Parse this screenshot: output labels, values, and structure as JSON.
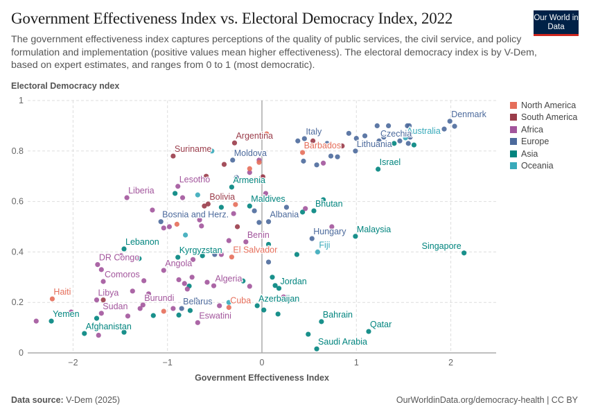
{
  "header": {
    "title": "Government Effectiveness Index vs. Electoral Democracy Index, 2022",
    "subtitle": "The government effectiveness index captures perceptions of the quality of public services, the civil service, and policy formulation and implementation (positive values mean higher effectiveness). The electoral democracy index is by V-Dem, based on expert estimates, and ranges from 0 to 1 (most democratic).",
    "logo": "Our World in Data"
  },
  "footer": {
    "source_label": "Data source:",
    "source": "V-Dem (2025)",
    "url": "OurWorldinData.org/democracy-health | CC BY"
  },
  "chart_data": {
    "type": "scatter",
    "title": "Government Effectiveness Index vs. Electoral Democracy Index, 2022",
    "xlabel": "Government Effectiveness Index",
    "ylabel": "Electoral Democracy ndex",
    "xlim": [
      -2.48,
      2.48
    ],
    "ylim": [
      0,
      1
    ],
    "xticks": [
      -2,
      -1,
      0,
      1,
      2
    ],
    "yticks": [
      0,
      0.2,
      0.4,
      0.6,
      0.8,
      1
    ],
    "ytick_labels": [
      "0",
      "0.2",
      "0.4",
      "0.6",
      "0.8",
      "1"
    ],
    "grid": true,
    "legend_position": "right",
    "legend": [
      {
        "name": "North America",
        "color": "#e56e5a"
      },
      {
        "name": "South America",
        "color": "#9a3c4a"
      },
      {
        "name": "Africa",
        "color": "#a2559c"
      },
      {
        "name": "Europe",
        "color": "#4c6a9c"
      },
      {
        "name": "Asia",
        "color": "#00847e"
      },
      {
        "name": "Oceania",
        "color": "#38aaba"
      }
    ],
    "points": [
      {
        "label": "Denmark",
        "region": "Europe",
        "x": 1.99,
        "y": 0.918
      },
      {
        "label": "Australia",
        "region": "Oceania",
        "x": 1.52,
        "y": 0.852
      },
      {
        "label": "Czechia",
        "region": "Europe",
        "x": 1.24,
        "y": 0.84
      },
      {
        "label": "Lithuania",
        "region": "Europe",
        "x": 0.99,
        "y": 0.8
      },
      {
        "label": "Italy",
        "region": "Europe",
        "x": 0.45,
        "y": 0.849
      },
      {
        "label": "Barbados",
        "region": "North America",
        "x": 0.43,
        "y": 0.794
      },
      {
        "label": "Israel",
        "region": "Asia",
        "x": 1.23,
        "y": 0.728
      },
      {
        "label": "Argentina",
        "region": "South America",
        "x": -0.29,
        "y": 0.832
      },
      {
        "label": "Suriname",
        "region": "South America",
        "x": -0.94,
        "y": 0.78
      },
      {
        "label": "Moldova",
        "region": "Europe",
        "x": -0.31,
        "y": 0.764
      },
      {
        "label": "Lesotho",
        "region": "Africa",
        "x": -0.89,
        "y": 0.66
      },
      {
        "label": "Liberia",
        "region": "Africa",
        "x": -1.43,
        "y": 0.615
      },
      {
        "label": "Armenia",
        "region": "Asia",
        "x": -0.32,
        "y": 0.657
      },
      {
        "label": "Bolivia",
        "region": "South America",
        "x": -0.57,
        "y": 0.59
      },
      {
        "label": "Maldives",
        "region": "Asia",
        "x": -0.13,
        "y": 0.582
      },
      {
        "label": "Bhutan",
        "region": "Asia",
        "x": 0.55,
        "y": 0.563
      },
      {
        "label": "Albania",
        "region": "Europe",
        "x": 0.07,
        "y": 0.52
      },
      {
        "label": "Bosnia and Herz.",
        "region": "Europe",
        "x": -1.07,
        "y": 0.52
      },
      {
        "label": "Hungary",
        "region": "Europe",
        "x": 0.53,
        "y": 0.453
      },
      {
        "label": "Malaysia",
        "region": "Asia",
        "x": 0.99,
        "y": 0.462
      },
      {
        "label": "Singapore",
        "region": "Asia",
        "x": 2.14,
        "y": 0.396
      },
      {
        "label": "Fiji",
        "region": "Oceania",
        "x": 0.59,
        "y": 0.4
      },
      {
        "label": "Benin",
        "region": "Africa",
        "x": -0.17,
        "y": 0.44
      },
      {
        "label": "El Salvador",
        "region": "North America",
        "x": -0.32,
        "y": 0.38
      },
      {
        "label": "Lebanon",
        "region": "Asia",
        "x": -1.46,
        "y": 0.412
      },
      {
        "label": "Kyrgyzstan",
        "region": "Asia",
        "x": -0.89,
        "y": 0.379
      },
      {
        "label": "DR Congo",
        "region": "Africa",
        "x": -1.74,
        "y": 0.35
      },
      {
        "label": "Angola",
        "region": "Africa",
        "x": -1.04,
        "y": 0.327
      },
      {
        "label": "Comoros",
        "region": "Africa",
        "x": -1.68,
        "y": 0.283
      },
      {
        "label": "Algeria",
        "region": "Africa",
        "x": -0.51,
        "y": 0.266
      },
      {
        "label": "Jordan",
        "region": "Asia",
        "x": 0.18,
        "y": 0.256
      },
      {
        "label": "Haiti",
        "region": "North America",
        "x": -2.22,
        "y": 0.214
      },
      {
        "label": "Libya",
        "region": "Africa",
        "x": -1.75,
        "y": 0.21
      },
      {
        "label": "Burundi",
        "region": "Africa",
        "x": -1.26,
        "y": 0.19
      },
      {
        "label": "Sudan",
        "region": "Africa",
        "x": -1.7,
        "y": 0.157
      },
      {
        "label": "Belarus",
        "region": "Europe",
        "x": -0.85,
        "y": 0.176
      },
      {
        "label": "Cuba",
        "region": "North America",
        "x": -0.35,
        "y": 0.18
      },
      {
        "label": "Azerbaijan",
        "region": "Asia",
        "x": -0.05,
        "y": 0.187
      },
      {
        "label": "Eswatini",
        "region": "Africa",
        "x": -0.68,
        "y": 0.12
      },
      {
        "label": "Yemen",
        "region": "Asia",
        "x": -2.23,
        "y": 0.126
      },
      {
        "label": "Afghanistan",
        "region": "Asia",
        "x": -1.88,
        "y": 0.077
      },
      {
        "label": "Bahrain",
        "region": "Asia",
        "x": 0.63,
        "y": 0.124
      },
      {
        "label": "Qatar",
        "region": "Asia",
        "x": 1.13,
        "y": 0.085
      },
      {
        "label": "Saudi Arabia",
        "region": "Asia",
        "x": 0.58,
        "y": 0.016
      },
      {
        "label": "",
        "region": "Europe",
        "x": 2.04,
        "y": 0.898
      },
      {
        "label": "",
        "region": "Europe",
        "x": 0.38,
        "y": 0.84
      },
      {
        "label": "",
        "region": "Europe",
        "x": 0.69,
        "y": 0.83
      },
      {
        "label": "",
        "region": "Europe",
        "x": 0.92,
        "y": 0.87
      },
      {
        "label": "",
        "region": "Europe",
        "x": 1.0,
        "y": 0.85
      },
      {
        "label": "",
        "region": "Europe",
        "x": 1.09,
        "y": 0.86
      },
      {
        "label": "",
        "region": "Europe",
        "x": 1.22,
        "y": 0.9
      },
      {
        "label": "",
        "region": "Europe",
        "x": 1.29,
        "y": 0.855
      },
      {
        "label": "",
        "region": "Europe",
        "x": 1.34,
        "y": 0.9
      },
      {
        "label": "",
        "region": "Europe",
        "x": 1.46,
        "y": 0.84
      },
      {
        "label": "",
        "region": "Europe",
        "x": 1.54,
        "y": 0.9
      },
      {
        "label": "",
        "region": "Europe",
        "x": 1.56,
        "y": 0.9
      },
      {
        "label": "",
        "region": "Europe",
        "x": 1.57,
        "y": 0.855
      },
      {
        "label": "",
        "region": "Europe",
        "x": 1.55,
        "y": 0.83
      },
      {
        "label": "",
        "region": "Europe",
        "x": 1.93,
        "y": 0.887
      },
      {
        "label": "",
        "region": "Europe",
        "x": 0.44,
        "y": 0.76
      },
      {
        "label": "",
        "region": "Europe",
        "x": 0.58,
        "y": 0.745
      },
      {
        "label": "",
        "region": "Europe",
        "x": 0.73,
        "y": 0.78
      },
      {
        "label": "",
        "region": "Europe",
        "x": 0.8,
        "y": 0.777
      },
      {
        "label": "",
        "region": "Europe",
        "x": 0.26,
        "y": 0.577
      },
      {
        "label": "",
        "region": "Europe",
        "x": -0.03,
        "y": 0.517
      },
      {
        "label": "",
        "region": "Europe",
        "x": -0.27,
        "y": 0.695
      },
      {
        "label": "",
        "region": "Europe",
        "x": -0.08,
        "y": 0.563
      },
      {
        "label": "",
        "region": "Europe",
        "x": 0.07,
        "y": 0.36
      },
      {
        "label": "",
        "region": "Europe",
        "x": -0.7,
        "y": 0.21
      },
      {
        "label": "",
        "region": "Europe",
        "x": -0.5,
        "y": 0.39
      },
      {
        "label": "",
        "region": "Asia",
        "x": 1.4,
        "y": 0.83
      },
      {
        "label": "",
        "region": "Asia",
        "x": 1.61,
        "y": 0.824
      },
      {
        "label": "",
        "region": "Asia",
        "x": 0.65,
        "y": 0.607
      },
      {
        "label": "",
        "region": "Asia",
        "x": 0.43,
        "y": 0.558
      },
      {
        "label": "",
        "region": "Asia",
        "x": -0.92,
        "y": 0.632
      },
      {
        "label": "",
        "region": "Asia",
        "x": -0.43,
        "y": 0.577
      },
      {
        "label": "",
        "region": "Asia",
        "x": 0.07,
        "y": 0.43
      },
      {
        "label": "",
        "region": "Asia",
        "x": 0.37,
        "y": 0.39
      },
      {
        "label": "",
        "region": "Asia",
        "x": -0.63,
        "y": 0.385
      },
      {
        "label": "",
        "region": "Asia",
        "x": -0.77,
        "y": 0.265
      },
      {
        "label": "",
        "region": "Asia",
        "x": -0.2,
        "y": 0.285
      },
      {
        "label": "",
        "region": "Asia",
        "x": 0.11,
        "y": 0.3
      },
      {
        "label": "",
        "region": "Asia",
        "x": 0.14,
        "y": 0.267
      },
      {
        "label": "",
        "region": "Asia",
        "x": 0.02,
        "y": 0.17
      },
      {
        "label": "",
        "region": "Asia",
        "x": 0.17,
        "y": 0.154
      },
      {
        "label": "",
        "region": "Asia",
        "x": -1.15,
        "y": 0.148
      },
      {
        "label": "",
        "region": "Asia",
        "x": -0.88,
        "y": 0.15
      },
      {
        "label": "",
        "region": "Asia",
        "x": -0.76,
        "y": 0.168
      },
      {
        "label": "",
        "region": "Asia",
        "x": -1.3,
        "y": 0.374
      },
      {
        "label": "",
        "region": "Asia",
        "x": -1.75,
        "y": 0.137
      },
      {
        "label": "",
        "region": "Asia",
        "x": -1.46,
        "y": 0.082
      },
      {
        "label": "",
        "region": "Asia",
        "x": 0.49,
        "y": 0.074
      },
      {
        "label": "",
        "region": "Oceania",
        "x": -0.53,
        "y": 0.8
      },
      {
        "label": "",
        "region": "Oceania",
        "x": -0.81,
        "y": 0.467
      },
      {
        "label": "",
        "region": "Oceania",
        "x": -0.68,
        "y": 0.626
      },
      {
        "label": "",
        "region": "Oceania",
        "x": -0.35,
        "y": 0.2
      },
      {
        "label": "",
        "region": "Africa",
        "x": 0.65,
        "y": 0.752
      },
      {
        "label": "",
        "region": "Africa",
        "x": 0.46,
        "y": 0.572
      },
      {
        "label": "",
        "region": "Africa",
        "x": 0.74,
        "y": 0.5
      },
      {
        "label": "",
        "region": "Africa",
        "x": -0.03,
        "y": 0.764
      },
      {
        "label": "",
        "region": "Africa",
        "x": -0.13,
        "y": 0.715
      },
      {
        "label": "",
        "region": "Africa",
        "x": 0.0,
        "y": 0.695
      },
      {
        "label": "",
        "region": "Africa",
        "x": 0.04,
        "y": 0.632
      },
      {
        "label": "",
        "region": "Africa",
        "x": -0.3,
        "y": 0.552
      },
      {
        "label": "",
        "region": "Africa",
        "x": -0.66,
        "y": 0.527
      },
      {
        "label": "",
        "region": "Africa",
        "x": -0.64,
        "y": 0.503
      },
      {
        "label": "",
        "region": "Africa",
        "x": -1.16,
        "y": 0.566
      },
      {
        "label": "",
        "region": "Africa",
        "x": -1.04,
        "y": 0.495
      },
      {
        "label": "",
        "region": "Africa",
        "x": -0.98,
        "y": 0.5
      },
      {
        "label": "",
        "region": "Africa",
        "x": -0.84,
        "y": 0.615
      },
      {
        "label": "",
        "region": "Africa",
        "x": -0.35,
        "y": 0.445
      },
      {
        "label": "",
        "region": "Africa",
        "x": -0.73,
        "y": 0.37
      },
      {
        "label": "",
        "region": "Africa",
        "x": -0.43,
        "y": 0.39
      },
      {
        "label": "",
        "region": "Africa",
        "x": -0.88,
        "y": 0.29
      },
      {
        "label": "",
        "region": "Africa",
        "x": -0.82,
        "y": 0.275
      },
      {
        "label": "",
        "region": "Africa",
        "x": -0.79,
        "y": 0.253
      },
      {
        "label": "",
        "region": "Africa",
        "x": -0.74,
        "y": 0.3
      },
      {
        "label": "",
        "region": "Africa",
        "x": -0.58,
        "y": 0.28
      },
      {
        "label": "",
        "region": "Africa",
        "x": -0.13,
        "y": 0.264
      },
      {
        "label": "",
        "region": "Africa",
        "x": -1.25,
        "y": 0.286
      },
      {
        "label": "",
        "region": "Africa",
        "x": -1.37,
        "y": 0.245
      },
      {
        "label": "",
        "region": "Africa",
        "x": -1.2,
        "y": 0.234
      },
      {
        "label": "",
        "region": "Africa",
        "x": -1.29,
        "y": 0.176
      },
      {
        "label": "",
        "region": "Africa",
        "x": -1.42,
        "y": 0.146
      },
      {
        "label": "",
        "region": "Africa",
        "x": -0.94,
        "y": 0.176
      },
      {
        "label": "",
        "region": "Africa",
        "x": -0.45,
        "y": 0.187
      },
      {
        "label": "",
        "region": "Africa",
        "x": 0.23,
        "y": 0.222
      },
      {
        "label": "",
        "region": "Africa",
        "x": -1.49,
        "y": 0.385
      },
      {
        "label": "",
        "region": "Africa",
        "x": -1.7,
        "y": 0.33
      },
      {
        "label": "",
        "region": "Africa",
        "x": -2.02,
        "y": 0.162
      },
      {
        "label": "",
        "region": "Africa",
        "x": -2.39,
        "y": 0.126
      },
      {
        "label": "",
        "region": "Africa",
        "x": -1.73,
        "y": 0.07
      },
      {
        "label": "",
        "region": "South America",
        "x": 0.54,
        "y": 0.84
      },
      {
        "label": "",
        "region": "South America",
        "x": 0.85,
        "y": 0.82
      },
      {
        "label": "",
        "region": "South America",
        "x": -0.4,
        "y": 0.747
      },
      {
        "label": "",
        "region": "South America",
        "x": -0.59,
        "y": 0.7
      },
      {
        "label": "",
        "region": "South America",
        "x": 0.01,
        "y": 0.698
      },
      {
        "label": "",
        "region": "South America",
        "x": -0.61,
        "y": 0.582
      },
      {
        "label": "",
        "region": "South America",
        "x": -0.26,
        "y": 0.5
      },
      {
        "label": "",
        "region": "South America",
        "x": -1.68,
        "y": 0.21
      },
      {
        "label": "",
        "region": "North America",
        "x": 0.05,
        "y": 0.868
      },
      {
        "label": "",
        "region": "North America",
        "x": -0.03,
        "y": 0.755
      },
      {
        "label": "",
        "region": "North America",
        "x": -0.13,
        "y": 0.73
      },
      {
        "label": "",
        "region": "North America",
        "x": -0.07,
        "y": 0.687
      },
      {
        "label": "",
        "region": "North America",
        "x": -0.28,
        "y": 0.588
      },
      {
        "label": "",
        "region": "North America",
        "x": -0.9,
        "y": 0.51
      },
      {
        "label": "",
        "region": "North America",
        "x": -1.04,
        "y": 0.165
      }
    ]
  }
}
